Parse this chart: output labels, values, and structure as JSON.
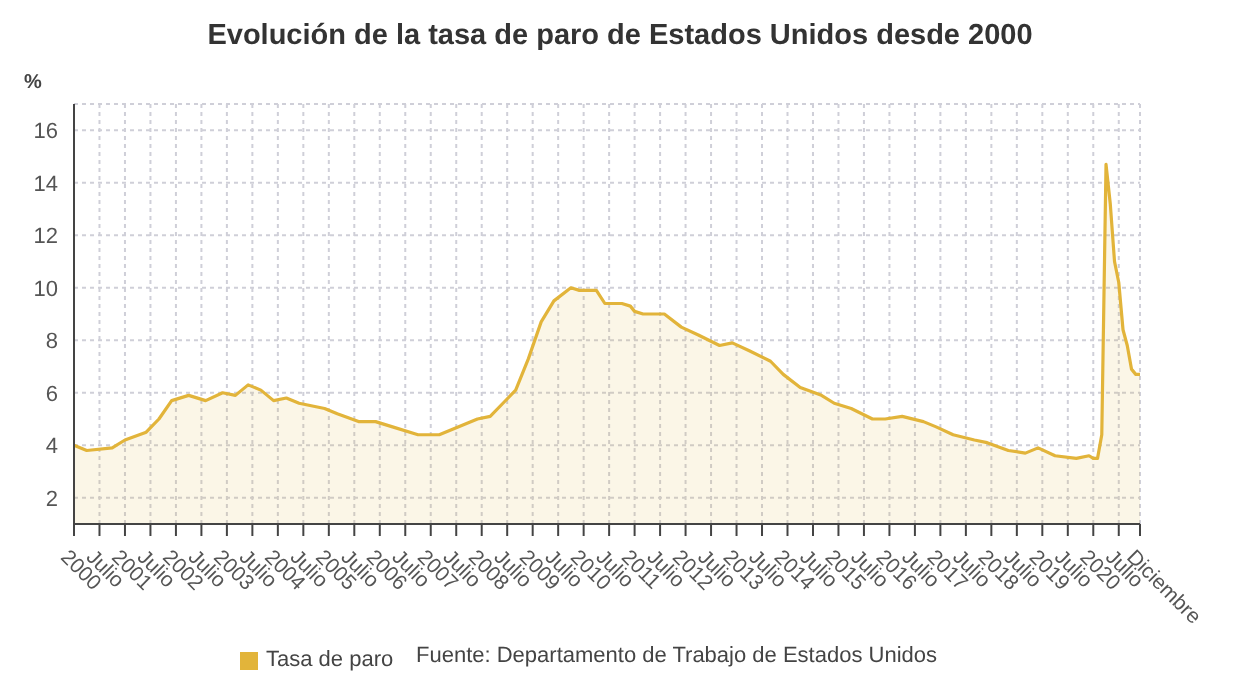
{
  "chart_data": {
    "type": "area",
    "title": "Evolución de la tasa de paro de Estados Unidos desde 2000",
    "ylabel": "%",
    "annotations": [
      "Fuente: Departamento de Trabajo de Estados Unidos"
    ],
    "x": [
      "2000-01",
      "2000-04",
      "2000-10",
      "2001-01",
      "2001-06",
      "2001-09",
      "2001-12",
      "2002-04",
      "2002-08",
      "2002-12",
      "2003-03",
      "2003-06",
      "2003-09",
      "2003-12",
      "2004-03",
      "2004-06",
      "2004-12",
      "2005-03",
      "2005-08",
      "2005-12",
      "2006-04",
      "2006-10",
      "2007-03",
      "2007-06",
      "2007-12",
      "2008-03",
      "2008-06",
      "2008-09",
      "2008-12",
      "2009-03",
      "2009-06",
      "2009-10",
      "2009-12",
      "2010-04",
      "2010-06",
      "2010-10",
      "2010-12",
      "2011-01",
      "2011-03",
      "2011-08",
      "2011-12",
      "2012-04",
      "2012-09",
      "2012-12",
      "2013-04",
      "2013-09",
      "2013-12",
      "2014-04",
      "2014-09",
      "2014-12",
      "2015-04",
      "2015-09",
      "2015-12",
      "2016-04",
      "2016-09",
      "2016-12",
      "2017-04",
      "2017-09",
      "2017-12",
      "2018-05",
      "2018-09",
      "2018-12",
      "2019-04",
      "2019-09",
      "2019-12",
      "2020-01",
      "2020-02",
      "2020-03",
      "2020-04",
      "2020-05",
      "2020-06",
      "2020-07",
      "2020-08",
      "2020-09",
      "2020-10",
      "2020-11",
      "2020-12"
    ],
    "series": [
      {
        "name": "Tasa de paro",
        "color": "#e2b43a",
        "values": [
          4.0,
          3.8,
          3.9,
          4.2,
          4.5,
          5.0,
          5.7,
          5.9,
          5.7,
          6.0,
          5.9,
          6.3,
          6.1,
          5.7,
          5.8,
          5.6,
          5.4,
          5.2,
          4.9,
          4.9,
          4.7,
          4.4,
          4.4,
          4.6,
          5.0,
          5.1,
          5.6,
          6.1,
          7.3,
          8.7,
          9.5,
          10.0,
          9.9,
          9.9,
          9.4,
          9.4,
          9.3,
          9.1,
          9.0,
          9.0,
          8.5,
          8.2,
          7.8,
          7.9,
          7.6,
          7.2,
          6.7,
          6.2,
          5.9,
          5.6,
          5.4,
          5.0,
          5.0,
          5.1,
          4.9,
          4.7,
          4.4,
          4.2,
          4.1,
          3.8,
          3.7,
          3.9,
          3.6,
          3.5,
          3.6,
          3.5,
          3.5,
          4.4,
          14.7,
          13.2,
          11.0,
          10.2,
          8.4,
          7.8,
          6.9,
          6.7,
          6.7
        ]
      }
    ],
    "xlim": [
      "2000-01",
      "2020-12"
    ],
    "xticks": [
      {
        "value": "2000-01",
        "label": "2000"
      },
      {
        "value": "2000-07",
        "label": "Julio"
      },
      {
        "value": "2001-01",
        "label": "2001"
      },
      {
        "value": "2001-07",
        "label": "Julio"
      },
      {
        "value": "2002-01",
        "label": "2002"
      },
      {
        "value": "2002-07",
        "label": "Julio"
      },
      {
        "value": "2003-01",
        "label": "2003"
      },
      {
        "value": "2003-07",
        "label": "Julio"
      },
      {
        "value": "2004-01",
        "label": "2004"
      },
      {
        "value": "2004-07",
        "label": "Julio"
      },
      {
        "value": "2005-01",
        "label": "2005"
      },
      {
        "value": "2005-07",
        "label": "Julio"
      },
      {
        "value": "2006-01",
        "label": "2006"
      },
      {
        "value": "2006-07",
        "label": "Julio"
      },
      {
        "value": "2007-01",
        "label": "2007"
      },
      {
        "value": "2007-07",
        "label": "Julio"
      },
      {
        "value": "2008-01",
        "label": "2008"
      },
      {
        "value": "2008-07",
        "label": "Julio"
      },
      {
        "value": "2009-01",
        "label": "2009"
      },
      {
        "value": "2009-07",
        "label": "Julio"
      },
      {
        "value": "2010-01",
        "label": "2010"
      },
      {
        "value": "2010-07",
        "label": "Julio"
      },
      {
        "value": "2011-01",
        "label": "2011"
      },
      {
        "value": "2011-07",
        "label": "Julio"
      },
      {
        "value": "2012-01",
        "label": "2012"
      },
      {
        "value": "2012-07",
        "label": "Julio"
      },
      {
        "value": "2013-01",
        "label": "2013"
      },
      {
        "value": "2013-07",
        "label": "Julio"
      },
      {
        "value": "2014-01",
        "label": "2014"
      },
      {
        "value": "2014-07",
        "label": "Julio"
      },
      {
        "value": "2015-01",
        "label": "2015"
      },
      {
        "value": "2015-07",
        "label": "Julio"
      },
      {
        "value": "2016-01",
        "label": "2016"
      },
      {
        "value": "2016-07",
        "label": "Julio"
      },
      {
        "value": "2017-01",
        "label": "2017"
      },
      {
        "value": "2017-07",
        "label": "Julio"
      },
      {
        "value": "2018-01",
        "label": "2018"
      },
      {
        "value": "2018-07",
        "label": "Julio"
      },
      {
        "value": "2019-01",
        "label": "2019"
      },
      {
        "value": "2019-07",
        "label": "Julio"
      },
      {
        "value": "2020-01",
        "label": "2020"
      },
      {
        "value": "2020-07",
        "label": "Julio"
      },
      {
        "value": "2020-12",
        "label": "Diciembre"
      }
    ],
    "ylim": [
      1,
      17
    ],
    "yticks": [
      2,
      4,
      6,
      8,
      10,
      12,
      14,
      16
    ],
    "grid": true,
    "legend": "bottom"
  }
}
